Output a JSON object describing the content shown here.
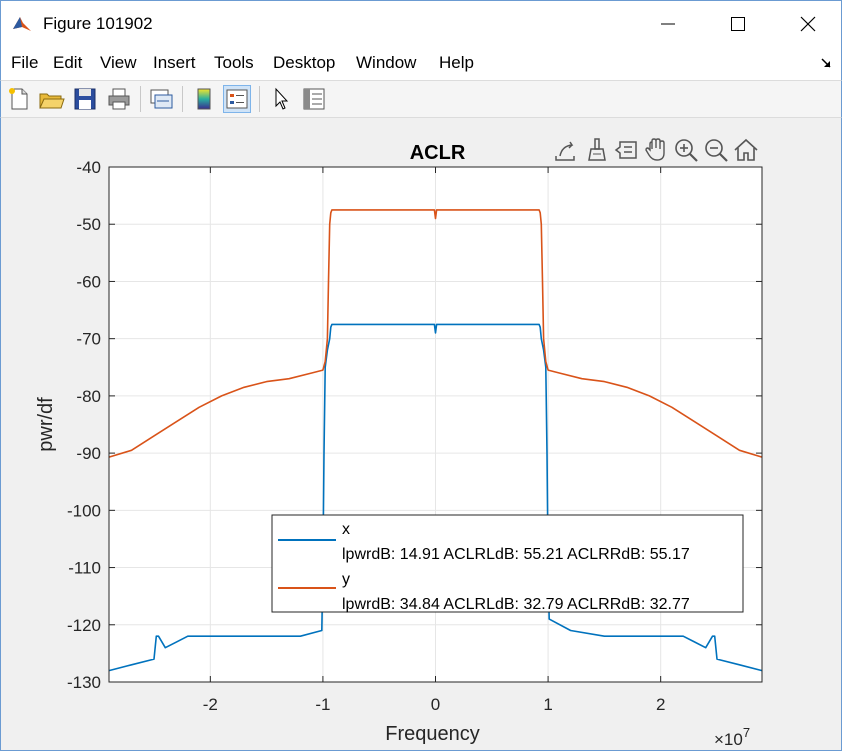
{
  "window": {
    "title": "Figure 101902",
    "minimize_icon": "minimize-icon",
    "maximize_icon": "maximize-icon",
    "close_icon": "close-icon"
  },
  "menu": {
    "items": [
      "File",
      "Edit",
      "View",
      "Insert",
      "Tools",
      "Desktop",
      "Window",
      "Help"
    ]
  },
  "toolbar": {
    "buttons": [
      "new-figure-icon",
      "open-file-icon",
      "save-icon",
      "print-icon",
      "link-plot-icon",
      "insert-colorbar-icon",
      "insert-legend-icon",
      "edit-plot-icon",
      "property-inspector-icon"
    ]
  },
  "axes_toolbar": {
    "buttons": [
      "export-icon",
      "brush-icon",
      "data-tips-icon",
      "pan-icon",
      "zoom-in-icon",
      "zoom-out-icon",
      "home-icon"
    ]
  },
  "colors": {
    "series_x": "#0072BD",
    "series_y": "#D95319",
    "grid": "#e6e6e6",
    "axes_bg": "#ffffff"
  },
  "chart_data": {
    "type": "line",
    "title": "ACLR",
    "xlabel": "Frequency",
    "ylabel": "pwr/df",
    "x_exponent": "×10",
    "x_exponent_power": "7",
    "xlim": [
      -29000000,
      29000000
    ],
    "ylim": [
      -130,
      -40
    ],
    "xticks": [
      -20000000,
      -10000000,
      0,
      10000000,
      20000000
    ],
    "xtick_labels": [
      "-2",
      "-1",
      "0",
      "1",
      "2"
    ],
    "yticks": [
      -130,
      -120,
      -110,
      -100,
      -90,
      -80,
      -70,
      -60,
      -50,
      -40
    ],
    "ytick_labels": [
      "-130",
      "-120",
      "-110",
      "-100",
      "-90",
      "-80",
      "-70",
      "-60",
      "-50",
      "-40"
    ],
    "grid": true,
    "legend_position": "bottom-right",
    "series": [
      {
        "name": "x",
        "legend_line2": "lpwrdB: 14.91 ACLRLdB: 55.21 ACLRRdB: 55.17",
        "x": [
          -29000000,
          -27000000,
          -25000000,
          -24800000,
          -24600000,
          -24000000,
          -23000000,
          -22000000,
          -20000000,
          -18000000,
          -15000000,
          -12000000,
          -10100000,
          -10000000,
          -9900000,
          -9800000,
          -9600000,
          -9400000,
          -9300000,
          -9200000,
          -9100000,
          -5000000,
          -100000,
          0,
          100000,
          5000000,
          9100000,
          9200000,
          9300000,
          9400000,
          9600000,
          9800000,
          9900000,
          10000000,
          10100000,
          12000000,
          15000000,
          18000000,
          20000000,
          22000000,
          23000000,
          24000000,
          24600000,
          24800000,
          25000000,
          27000000,
          29000000
        ],
        "y": [
          -128,
          -127,
          -126,
          -122,
          -122,
          -124,
          -123,
          -122,
          -122,
          -122,
          -122,
          -122,
          -121,
          -110,
          -90,
          -75,
          -72,
          -70,
          -68,
          -67.5,
          -67.5,
          -67.5,
          -67.5,
          -69,
          -67.5,
          -67.5,
          -67.5,
          -67.5,
          -68,
          -70,
          -72,
          -75,
          -90,
          -110,
          -119,
          -121,
          -122,
          -122,
          -122,
          -122,
          -123,
          -124,
          -122,
          -122,
          -126,
          -127,
          -128
        ]
      },
      {
        "name": "y",
        "legend_line2": "lpwrdB: 34.84 ACLRLdB: 32.79 ACLRRdB: 32.77",
        "x": [
          -29000000,
          -27000000,
          -25000000,
          -23000000,
          -21000000,
          -19000000,
          -17000000,
          -15000000,
          -13000000,
          -11000000,
          -10000000,
          -9800000,
          -9600000,
          -9500000,
          -9400000,
          -9300000,
          -9200000,
          -5000000,
          -100000,
          0,
          100000,
          5000000,
          9200000,
          9300000,
          9400000,
          9500000,
          9600000,
          9800000,
          10000000,
          11000000,
          13000000,
          15000000,
          17000000,
          19000000,
          21000000,
          23000000,
          25000000,
          27000000,
          29000000
        ],
        "y": [
          -90.7,
          -89.5,
          -87,
          -84.5,
          -82,
          -80,
          -78.5,
          -77.5,
          -77,
          -76,
          -75.5,
          -74,
          -70,
          -60,
          -50,
          -48,
          -47.5,
          -47.5,
          -47.5,
          -49,
          -47.5,
          -47.5,
          -47.5,
          -48,
          -50,
          -60,
          -70,
          -74,
          -75.5,
          -76,
          -77,
          -77.5,
          -78.5,
          -80,
          -82,
          -84.5,
          -87,
          -89.5,
          -90.7
        ]
      }
    ]
  }
}
